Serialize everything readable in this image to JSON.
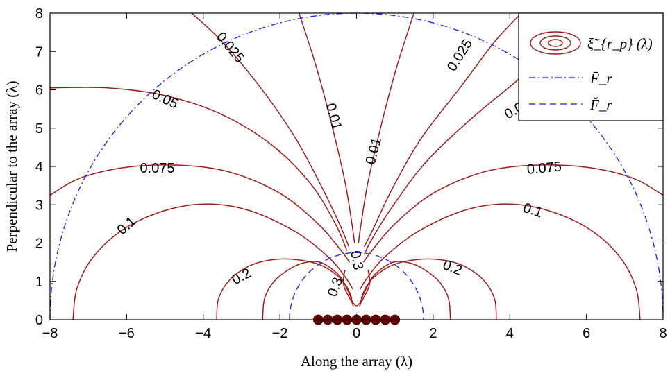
{
  "chart_data": {
    "type": "contour",
    "xlabel": "Along the array (λ)",
    "ylabel": "Perpendicular to the array (λ)",
    "xlim": [
      -8,
      8
    ],
    "ylim": [
      0,
      8
    ],
    "xticks": [
      "−8",
      "−6",
      "−4",
      "−2",
      "0",
      "2",
      "4",
      "6",
      "8"
    ],
    "yticks": [
      "0",
      "1",
      "2",
      "3",
      "4",
      "5",
      "6",
      "7",
      "8"
    ],
    "grid": false,
    "legend_position": "top-right",
    "legend": {
      "contour": "ξ̃_{r_p} (λ)",
      "far_boundary": "F̄_r",
      "near_boundary": "F̆_r"
    },
    "colors": {
      "contour": "#a11c1c",
      "boundary": "#1a1aff",
      "element": "#6a0000"
    },
    "far_field_radius": 8,
    "near_field_radius": 1.75,
    "array_elements_x": [
      -1,
      -0.75,
      -0.5,
      -0.25,
      0,
      0.25,
      0.5,
      0.75,
      1
    ],
    "contour_levels": [
      {
        "level": "0.01",
        "label": "0.01"
      },
      {
        "level": "0.025",
        "label": "0.025"
      },
      {
        "level": "0.05",
        "label": "0.05"
      },
      {
        "level": "0.075",
        "label": "0.075"
      },
      {
        "level": "0.1",
        "label": "0.1"
      },
      {
        "level": "0.2",
        "label": "0.2"
      },
      {
        "level": "0.3",
        "label": "0.3"
      }
    ]
  }
}
